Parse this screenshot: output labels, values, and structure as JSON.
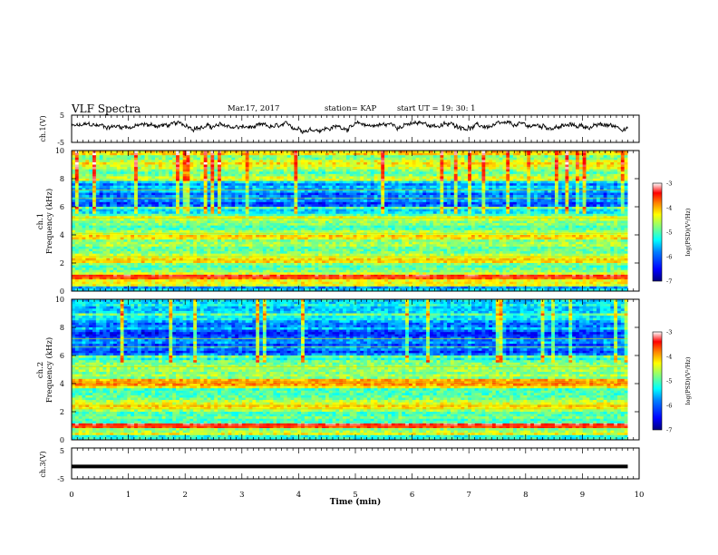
{
  "header": {
    "title": "VLF Spectra",
    "date": "Mar.17, 2017",
    "station": "station= KAP",
    "start_ut": "start  UT =   19: 30: 1"
  },
  "colors": {
    "colormap": [
      "#00007f",
      "#0000ff",
      "#0080ff",
      "#00ffff",
      "#80ff80",
      "#ffff00",
      "#ff8000",
      "#ff0000",
      "#ffffff"
    ],
    "trace": "#000000"
  },
  "chart_data": [
    {
      "type": "line",
      "name": "ch1-waveform",
      "ylabel": "ch.1(V)",
      "ylim": [
        -5,
        5
      ],
      "yticks": [
        "5",
        "-5"
      ],
      "x_range": [
        0,
        9.8
      ],
      "description_values": "noisy trace around ~1 V"
    },
    {
      "type": "heatmap",
      "name": "ch1-spectrogram",
      "ylabel": "ch.1\nFrequency (kHz)",
      "ylabel_lines": [
        "ch.1",
        "Frequency (kHz)"
      ],
      "ylim": [
        0,
        10
      ],
      "yticks": [
        "0",
        "2",
        "4",
        "6",
        "8",
        "10"
      ],
      "colorbar": {
        "label": "log(PSD)(V²/Hz)",
        "range": [
          -7,
          -3
        ],
        "ticks": [
          "-3",
          "-4",
          "-5",
          "-6",
          "-7"
        ]
      }
    },
    {
      "type": "heatmap",
      "name": "ch2-spectrogram",
      "ylabel_lines": [
        "ch.2",
        "Frequency (kHz)"
      ],
      "ylim": [
        0,
        10
      ],
      "yticks": [
        "0",
        "2",
        "4",
        "6",
        "8",
        "10"
      ],
      "colorbar": {
        "label": "log(PSD)(V²/Hz)",
        "range": [
          -7,
          -3
        ],
        "ticks": [
          "-3",
          "-4",
          "-5",
          "-6",
          "-7"
        ]
      }
    },
    {
      "type": "line",
      "name": "ch3-waveform",
      "ylabel": "ch.3(V)",
      "ylim": [
        -5,
        5
      ],
      "yticks": [
        "5",
        "-5"
      ],
      "x_range": [
        0,
        9.8
      ],
      "value": -1
    }
  ],
  "xaxis": {
    "label": "Time (min)",
    "ticks": [
      "0",
      "1",
      "2",
      "3",
      "4",
      "5",
      "6",
      "7",
      "8",
      "9",
      "10"
    ],
    "range": [
      0,
      10
    ]
  }
}
